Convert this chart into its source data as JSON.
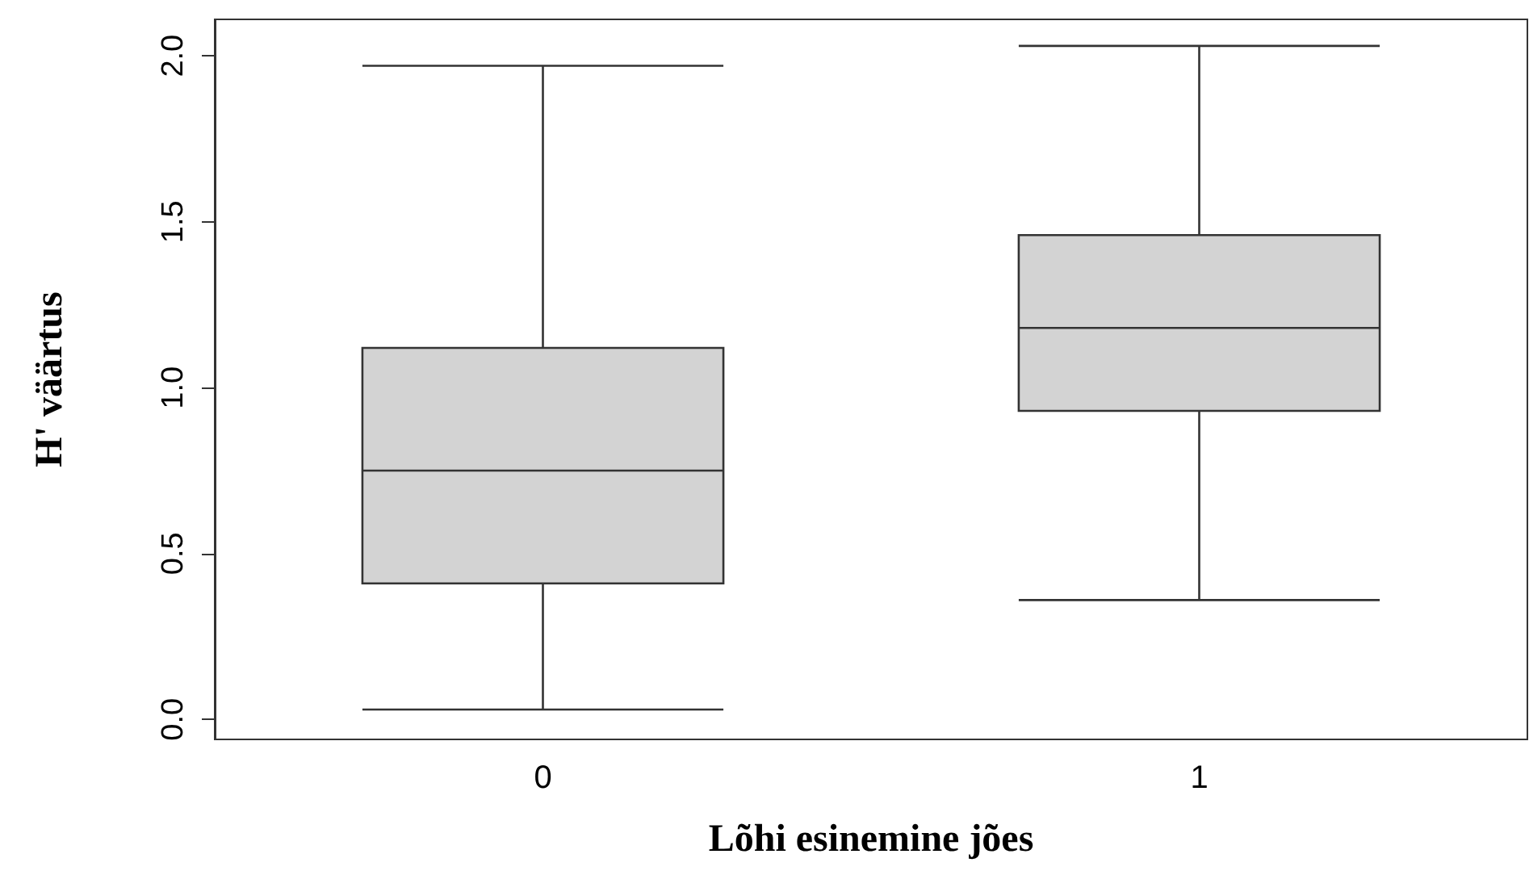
{
  "chart_data": {
    "type": "box",
    "xlabel": "Lõhi esinemine jões",
    "ylabel": "H' väärtus",
    "categories": [
      "0",
      "1"
    ],
    "color": "#d3d3d3",
    "boxes": [
      {
        "low": 0.03,
        "q1": 0.41,
        "median": 0.75,
        "q3": 1.12,
        "high": 1.97
      },
      {
        "low": 0.36,
        "q1": 0.93,
        "median": 1.18,
        "q3": 1.46,
        "high": 2.03
      }
    ],
    "ylim": [
      -0.06,
      2.11
    ],
    "yticks": [
      {
        "value": 0,
        "label": "0.0"
      },
      {
        "value": 0.5,
        "label": "0.5"
      },
      {
        "value": 1,
        "label": "1.0"
      },
      {
        "value": 1.5,
        "label": "1.5"
      },
      {
        "value": 2,
        "label": "2.0"
      }
    ],
    "grid": false
  }
}
